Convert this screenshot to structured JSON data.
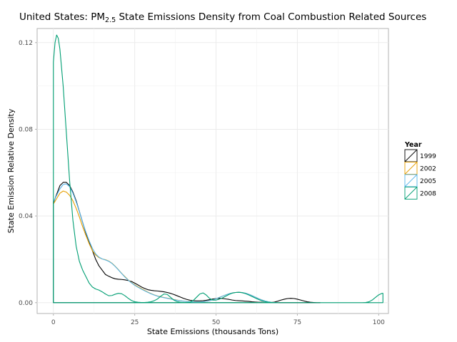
{
  "chart_data": {
    "type": "line",
    "title": "United States: PM",
    "title_subscript": "2.5",
    "title_rest": " State Emissions Density from Coal Combustion Related Sources",
    "xlabel": "State Emissions (thousands Tons)",
    "ylabel": "State Emission Relative Density",
    "xlim": [
      -5,
      103
    ],
    "ylim": [
      -0.005,
      0.1265
    ],
    "x_ticks": [
      0,
      25,
      50,
      75,
      100
    ],
    "x_tick_labels": [
      "0",
      "25",
      "50",
      "75",
      "100"
    ],
    "y_ticks": [
      0.0,
      0.04,
      0.08,
      0.12
    ],
    "y_tick_labels": [
      "0.00",
      "0.04",
      "0.08",
      "0.12"
    ],
    "grid": true,
    "legend": {
      "title": "Year",
      "placement": "right"
    },
    "series": [
      {
        "name": "1999",
        "color": "#000000",
        "points": [
          [
            0,
            0.046
          ],
          [
            1,
            0.05
          ],
          [
            2,
            0.054
          ],
          [
            3,
            0.0555
          ],
          [
            4,
            0.0555
          ],
          [
            5,
            0.054
          ],
          [
            6,
            0.051
          ],
          [
            7,
            0.047
          ],
          [
            8,
            0.042
          ],
          [
            9,
            0.037
          ],
          [
            10,
            0.032
          ],
          [
            11,
            0.028
          ],
          [
            12,
            0.024
          ],
          [
            13,
            0.02
          ],
          [
            14,
            0.017
          ],
          [
            15,
            0.015
          ],
          [
            16,
            0.013
          ],
          [
            17,
            0.0122
          ],
          [
            18,
            0.0115
          ],
          [
            19,
            0.011
          ],
          [
            20,
            0.0108
          ],
          [
            21,
            0.0107
          ],
          [
            22,
            0.0105
          ],
          [
            23,
            0.0102
          ],
          [
            24,
            0.0098
          ],
          [
            25,
            0.009
          ],
          [
            26,
            0.0082
          ],
          [
            27,
            0.0073
          ],
          [
            28,
            0.0066
          ],
          [
            29,
            0.006
          ],
          [
            30,
            0.0057
          ],
          [
            31,
            0.0055
          ],
          [
            32,
            0.0054
          ],
          [
            33,
            0.0052
          ],
          [
            34,
            0.005
          ],
          [
            35,
            0.0047
          ],
          [
            36,
            0.0043
          ],
          [
            37,
            0.0038
          ],
          [
            38,
            0.0032
          ],
          [
            39,
            0.0026
          ],
          [
            40,
            0.002
          ],
          [
            41,
            0.0015
          ],
          [
            42,
            0.0011
          ],
          [
            43,
            0.0009
          ],
          [
            44,
            0.0008
          ],
          [
            45,
            0.0008
          ],
          [
            46,
            0.0009
          ],
          [
            47,
            0.0011
          ],
          [
            48,
            0.0014
          ],
          [
            49,
            0.0017
          ],
          [
            50,
            0.0019
          ],
          [
            51,
            0.002
          ],
          [
            52,
            0.0019
          ],
          [
            53,
            0.0017
          ],
          [
            54,
            0.0015
          ],
          [
            55,
            0.0012
          ],
          [
            56,
            0.001
          ],
          [
            57,
            0.0009
          ],
          [
            58,
            0.0008
          ],
          [
            59,
            0.0007
          ],
          [
            60,
            0.0006
          ],
          [
            61,
            0.0004
          ],
          [
            62,
            0.0003
          ],
          [
            63,
            0.0002
          ],
          [
            64,
            0.0002
          ],
          [
            65,
            0.0001
          ],
          [
            66,
            0.0001
          ],
          [
            67,
            0.0001
          ],
          [
            68,
            0.0003
          ],
          [
            69,
            0.0007
          ],
          [
            70,
            0.0012
          ],
          [
            71,
            0.0016
          ],
          [
            72,
            0.0019
          ],
          [
            73,
            0.002
          ],
          [
            74,
            0.0019
          ],
          [
            75,
            0.0016
          ],
          [
            76,
            0.0012
          ],
          [
            77,
            0.0008
          ],
          [
            78,
            0.0004
          ],
          [
            79,
            0.0002
          ],
          [
            80,
            0.0001
          ],
          [
            81,
            0.0
          ],
          [
            82,
            0.0
          ]
        ],
        "baseline": [
          0,
          82
        ]
      },
      {
        "name": "2002",
        "color": "#E69F00",
        "points": [
          [
            0,
            0.0455
          ],
          [
            1,
            0.048
          ],
          [
            2,
            0.0505
          ],
          [
            3,
            0.0515
          ],
          [
            4,
            0.051
          ],
          [
            5,
            0.0495
          ],
          [
            6,
            0.047
          ],
          [
            7,
            0.0435
          ],
          [
            8,
            0.0395
          ],
          [
            9,
            0.035
          ],
          [
            10,
            0.031
          ],
          [
            11,
            0.0272
          ],
          [
            12,
            0.024
          ],
          [
            13,
            0.022
          ],
          [
            14,
            0.0208
          ],
          [
            15,
            0.0202
          ],
          [
            16,
            0.0198
          ],
          [
            17,
            0.0192
          ],
          [
            18,
            0.0182
          ],
          [
            19,
            0.0168
          ],
          [
            20,
            0.0152
          ],
          [
            21,
            0.0135
          ],
          [
            22,
            0.012
          ],
          [
            23,
            0.0105
          ],
          [
            24,
            0.0092
          ],
          [
            25,
            0.0082
          ],
          [
            26,
            0.0073
          ],
          [
            27,
            0.0065
          ],
          [
            28,
            0.0057
          ],
          [
            29,
            0.0049
          ],
          [
            30,
            0.0042
          ],
          [
            31,
            0.0036
          ],
          [
            32,
            0.0031
          ],
          [
            33,
            0.0027
          ],
          [
            34,
            0.0024
          ],
          [
            35,
            0.0021
          ],
          [
            36,
            0.0018
          ],
          [
            37,
            0.0015
          ],
          [
            38,
            0.0012
          ],
          [
            39,
            0.0009
          ],
          [
            40,
            0.0007
          ],
          [
            41,
            0.0005
          ],
          [
            42,
            0.0004
          ],
          [
            43,
            0.0003
          ],
          [
            44,
            0.0003
          ],
          [
            45,
            0.0003
          ],
          [
            46,
            0.0004
          ],
          [
            47,
            0.0006
          ],
          [
            48,
            0.0009
          ],
          [
            49,
            0.0013
          ],
          [
            50,
            0.0018
          ],
          [
            51,
            0.0024
          ],
          [
            52,
            0.003
          ],
          [
            53,
            0.0036
          ],
          [
            54,
            0.0041
          ],
          [
            55,
            0.0045
          ],
          [
            56,
            0.0047
          ],
          [
            57,
            0.0048
          ],
          [
            58,
            0.0047
          ],
          [
            59,
            0.0044
          ],
          [
            60,
            0.0039
          ],
          [
            61,
            0.0033
          ],
          [
            62,
            0.0026
          ],
          [
            63,
            0.0019
          ],
          [
            64,
            0.0013
          ],
          [
            65,
            0.0008
          ],
          [
            66,
            0.0004
          ],
          [
            67,
            0.0002
          ],
          [
            68,
            0.0001
          ],
          [
            69,
            0.0
          ]
        ],
        "baseline": [
          0,
          69
        ]
      },
      {
        "name": "2005",
        "color": "#56B4E9",
        "points": [
          [
            0,
            0.0465
          ],
          [
            1,
            0.0495
          ],
          [
            2,
            0.0525
          ],
          [
            3,
            0.0545
          ],
          [
            4,
            0.0548
          ],
          [
            5,
            0.0535
          ],
          [
            6,
            0.0505
          ],
          [
            7,
            0.0465
          ],
          [
            8,
            0.042
          ],
          [
            9,
            0.037
          ],
          [
            10,
            0.0325
          ],
          [
            11,
            0.0285
          ],
          [
            12,
            0.025
          ],
          [
            13,
            0.0225
          ],
          [
            14,
            0.021
          ],
          [
            15,
            0.0202
          ],
          [
            16,
            0.0197
          ],
          [
            17,
            0.0191
          ],
          [
            18,
            0.0181
          ],
          [
            19,
            0.0167
          ],
          [
            20,
            0.0151
          ],
          [
            21,
            0.0134
          ],
          [
            22,
            0.0118
          ],
          [
            23,
            0.0104
          ],
          [
            24,
            0.0091
          ],
          [
            25,
            0.008
          ],
          [
            26,
            0.0071
          ],
          [
            27,
            0.0063
          ],
          [
            28,
            0.0055
          ],
          [
            29,
            0.0048
          ],
          [
            30,
            0.0041
          ],
          [
            31,
            0.0035
          ],
          [
            32,
            0.003
          ],
          [
            33,
            0.0026
          ],
          [
            34,
            0.0023
          ],
          [
            35,
            0.002
          ],
          [
            36,
            0.0017
          ],
          [
            37,
            0.0014
          ],
          [
            38,
            0.0011
          ],
          [
            39,
            0.0009
          ],
          [
            40,
            0.0007
          ],
          [
            41,
            0.0005
          ],
          [
            42,
            0.0004
          ],
          [
            43,
            0.0003
          ],
          [
            44,
            0.0003
          ],
          [
            45,
            0.0003
          ],
          [
            46,
            0.0004
          ],
          [
            47,
            0.0006
          ],
          [
            48,
            0.0009
          ],
          [
            49,
            0.0013
          ],
          [
            50,
            0.0018
          ],
          [
            51,
            0.0024
          ],
          [
            52,
            0.003
          ],
          [
            53,
            0.0036
          ],
          [
            54,
            0.0041
          ],
          [
            55,
            0.0045
          ],
          [
            56,
            0.0047
          ],
          [
            57,
            0.0048
          ],
          [
            58,
            0.0047
          ],
          [
            59,
            0.0044
          ],
          [
            60,
            0.0039
          ],
          [
            61,
            0.0033
          ],
          [
            62,
            0.0026
          ],
          [
            63,
            0.0019
          ],
          [
            64,
            0.0013
          ],
          [
            65,
            0.0008
          ],
          [
            66,
            0.0004
          ],
          [
            67,
            0.0002
          ],
          [
            68,
            0.0001
          ],
          [
            69,
            0.0
          ]
        ],
        "baseline": [
          0,
          69
        ]
      },
      {
        "name": "2008",
        "color": "#009E73",
        "points": [
          [
            0,
            0.111
          ],
          [
            0.5,
            0.12
          ],
          [
            1,
            0.1235
          ],
          [
            1.5,
            0.122
          ],
          [
            2,
            0.117
          ],
          [
            3,
            0.1
          ],
          [
            4,
            0.078
          ],
          [
            5,
            0.056
          ],
          [
            6,
            0.038
          ],
          [
            7,
            0.026
          ],
          [
            8,
            0.019
          ],
          [
            9,
            0.015
          ],
          [
            10,
            0.012
          ],
          [
            11,
            0.009
          ],
          [
            12,
            0.0072
          ],
          [
            13,
            0.0063
          ],
          [
            14,
            0.0058
          ],
          [
            15,
            0.005
          ],
          [
            16,
            0.004
          ],
          [
            17,
            0.0032
          ],
          [
            18,
            0.0033
          ],
          [
            19,
            0.0039
          ],
          [
            20,
            0.0043
          ],
          [
            21,
            0.0041
          ],
          [
            22,
            0.0032
          ],
          [
            23,
            0.002
          ],
          [
            24,
            0.001
          ],
          [
            25,
            0.0004
          ],
          [
            26,
            0.0002
          ],
          [
            27,
            0.0001
          ],
          [
            28,
            0.0001
          ],
          [
            29,
            0.0002
          ],
          [
            30,
            0.0004
          ],
          [
            31,
            0.0009
          ],
          [
            32,
            0.0017
          ],
          [
            33,
            0.003
          ],
          [
            34,
            0.004
          ],
          [
            35,
            0.0038
          ],
          [
            36,
            0.0025
          ],
          [
            37,
            0.0012
          ],
          [
            38,
            0.0005
          ],
          [
            39,
            0.0002
          ],
          [
            40,
            0.0001
          ],
          [
            41,
            0.0001
          ],
          [
            42,
            0.0003
          ],
          [
            43,
            0.001
          ],
          [
            44,
            0.0025
          ],
          [
            45,
            0.004
          ],
          [
            46,
            0.0045
          ],
          [
            47,
            0.0035
          ],
          [
            48,
            0.002
          ],
          [
            49,
            0.0012
          ],
          [
            50,
            0.0012
          ],
          [
            51,
            0.0016
          ],
          [
            52,
            0.0022
          ],
          [
            53,
            0.003
          ],
          [
            54,
            0.0038
          ],
          [
            55,
            0.0044
          ],
          [
            56,
            0.0047
          ],
          [
            57,
            0.0048
          ],
          [
            58,
            0.0046
          ],
          [
            59,
            0.0042
          ],
          [
            60,
            0.0036
          ],
          [
            61,
            0.0029
          ],
          [
            62,
            0.0022
          ],
          [
            63,
            0.0015
          ],
          [
            64,
            0.0009
          ],
          [
            65,
            0.0005
          ],
          [
            66,
            0.0002
          ],
          [
            67,
            0.0001
          ],
          [
            68,
            0.0
          ],
          [
            70,
            0.0
          ],
          [
            80,
            0.0
          ],
          [
            90,
            0.0
          ],
          [
            95,
            0.0
          ],
          [
            96,
            0.0001
          ],
          [
            97,
            0.0004
          ],
          [
            98,
            0.0012
          ],
          [
            99,
            0.0024
          ],
          [
            100,
            0.0036
          ],
          [
            101,
            0.0043
          ],
          [
            101.3,
            0.0043
          ]
        ],
        "baseline": [
          0,
          101.3
        ]
      }
    ]
  }
}
